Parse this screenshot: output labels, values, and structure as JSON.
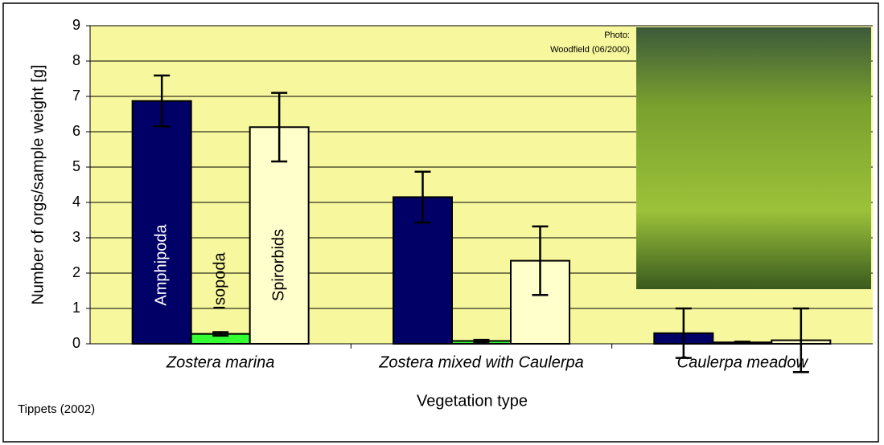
{
  "chart_data": {
    "type": "bar",
    "categories": [
      "Zostera marina",
      "Zostera mixed with Caulerpa",
      "Caulerpa meadow"
    ],
    "series": [
      {
        "name": "Amphipoda",
        "color": "#000066",
        "values": [
          6.87,
          4.15,
          0.3
        ],
        "errors": [
          0.72,
          0.72,
          0.7
        ]
      },
      {
        "name": "Isopoda",
        "color": "#33ff33",
        "values": [
          0.28,
          0.08,
          0.04
        ],
        "errors": [
          0.05,
          0.03,
          0.02
        ]
      },
      {
        "name": "Spirorbids",
        "color": "#ffffcc",
        "values": [
          6.13,
          2.35,
          0.1
        ],
        "errors": [
          0.97,
          0.97,
          0.9
        ]
      }
    ],
    "ylim": [
      0,
      9
    ],
    "yticks": [
      0,
      1,
      2,
      3,
      4,
      5,
      6,
      7,
      8,
      9
    ],
    "grid": true,
    "y_label": "Number of orgs/sample weight [g]",
    "x_label": "Vegetation type",
    "source": "Tippets (2002)",
    "photo_credit": [
      "Photo:",
      "Woodfield (06/2000)"
    ]
  }
}
